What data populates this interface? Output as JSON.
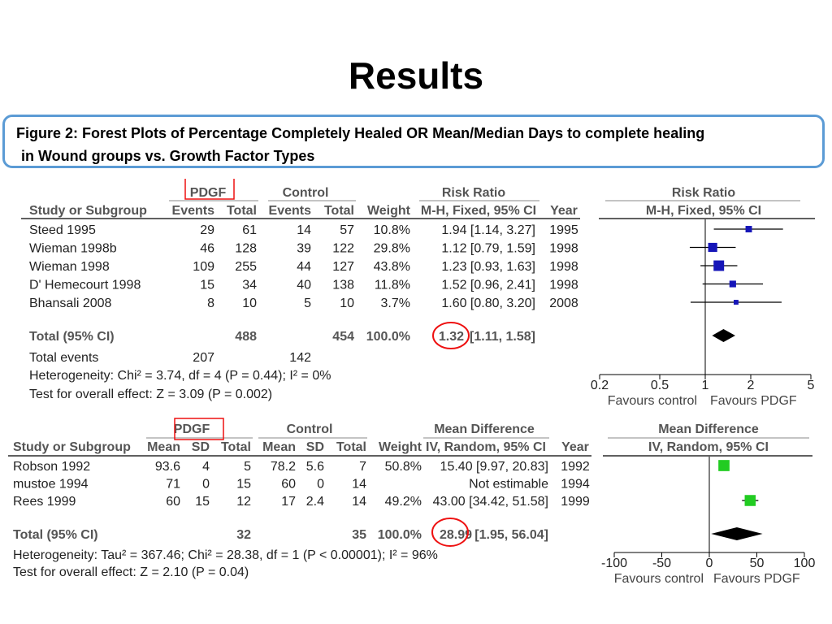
{
  "slide_title": "Results",
  "caption": {
    "line1": "Figure 2: Forest Plots of Percentage Completely Healed OR Mean/Median Days to complete healing",
    "line2": "in Wound groups vs. Growth Factor Types"
  },
  "colors": {
    "plot1_marker": "#1515b8",
    "plot2_marker": "#22cc22",
    "diamond": "#000000",
    "highlight": "#ee1111",
    "header_text": "#555555"
  },
  "chart_data": [
    {
      "type": "table",
      "columns": {
        "study": "Study or Subgroup",
        "group1": "PDGF",
        "group2": "Control",
        "events": "Events",
        "total": "Total",
        "weight": "Weight",
        "effect_title": "Risk Ratio",
        "effect_method": "M-H, Fixed, 95% CI",
        "year": "Year"
      },
      "plot_header": {
        "title": "Risk Ratio",
        "method": "M-H, Fixed, 95% CI"
      },
      "scale": "log",
      "axis": {
        "ticks": [
          0.2,
          0.5,
          1,
          2,
          5
        ],
        "tick_labels": [
          "0.2",
          "0.5",
          "1",
          "2",
          "5"
        ],
        "xlim": [
          0.2,
          5
        ]
      },
      "favours": {
        "left": "Favours control",
        "right": "Favours PDGF"
      },
      "rows": [
        {
          "study": "Steed 1995",
          "ev1": "29",
          "tot1": "61",
          "ev2": "14",
          "tot2": "57",
          "weight": "10.8%",
          "ci_text": "1.94 [1.14, 3.27]",
          "year": "1995",
          "est": 1.94,
          "lo": 1.14,
          "hi": 3.27,
          "w": 10.8
        },
        {
          "study": "Wieman 1998b",
          "ev1": "46",
          "tot1": "128",
          "ev2": "39",
          "tot2": "122",
          "weight": "29.8%",
          "ci_text": "1.12 [0.79, 1.59]",
          "year": "1998",
          "est": 1.12,
          "lo": 0.79,
          "hi": 1.59,
          "w": 29.8
        },
        {
          "study": "Wieman 1998",
          "ev1": "109",
          "tot1": "255",
          "ev2": "44",
          "tot2": "127",
          "weight": "43.8%",
          "ci_text": "1.23 [0.93, 1.63]",
          "year": "1998",
          "est": 1.23,
          "lo": 0.93,
          "hi": 1.63,
          "w": 43.8
        },
        {
          "study": "D' Hemecourt 1998",
          "ev1": "15",
          "tot1": "34",
          "ev2": "40",
          "tot2": "138",
          "weight": "11.8%",
          "ci_text": "1.52 [0.96, 2.41]",
          "year": "1998",
          "est": 1.52,
          "lo": 0.96,
          "hi": 2.41,
          "w": 11.8
        },
        {
          "study": "Bhansali 2008",
          "ev1": "8",
          "tot1": "10",
          "ev2": "5",
          "tot2": "10",
          "weight": "3.7%",
          "ci_text": "1.60 [0.80, 3.20]",
          "year": "2008",
          "est": 1.6,
          "lo": 0.8,
          "hi": 3.2,
          "w": 3.7
        }
      ],
      "total": {
        "label": "Total (95% CI)",
        "tot1": "488",
        "tot2": "454",
        "weight": "100.0%",
        "est_text": "1.32",
        "ci_text": "[1.11, 1.58]",
        "est": 1.32,
        "lo": 1.11,
        "hi": 1.58
      },
      "total_events": {
        "label": "Total events",
        "ev1": "207",
        "ev2": "142"
      },
      "heterogeneity": "Heterogeneity: Chi² = 3.74, df = 4 (P = 0.44); I² = 0%",
      "overall_effect": "Test for overall effect: Z = 3.09 (P = 0.002)"
    },
    {
      "type": "table",
      "columns": {
        "study": "Study or Subgroup",
        "group1": "PDGF",
        "group2": "Control",
        "mean": "Mean",
        "sd": "SD",
        "total": "Total",
        "weight": "Weight",
        "effect_title": "Mean Difference",
        "effect_method": "IV, Random, 95% CI",
        "year": "Year"
      },
      "plot_header": {
        "title": "Mean Difference",
        "method": "IV, Random, 95% CI"
      },
      "scale": "linear",
      "axis": {
        "ticks": [
          -100,
          -50,
          0,
          50,
          100
        ],
        "tick_labels": [
          "-100",
          "-50",
          "0",
          "50",
          "100"
        ],
        "xlim": [
          -100,
          100
        ]
      },
      "favours": {
        "left": "Favours control",
        "right": "Favours PDGF"
      },
      "rows": [
        {
          "study": "Robson 1992",
          "m1": "93.6",
          "sd1": "4",
          "tot1": "5",
          "m2": "78.2",
          "sd2": "5.6",
          "tot2": "7",
          "weight": "50.8%",
          "ci_text": "15.40 [9.97, 20.83]",
          "year": "1992",
          "est": 15.4,
          "lo": 9.97,
          "hi": 20.83,
          "w": 50.8
        },
        {
          "study": "mustoe 1994",
          "m1": "71",
          "sd1": "0",
          "tot1": "15",
          "m2": "60",
          "sd2": "0",
          "tot2": "14",
          "weight": "",
          "ci_text": "Not estimable",
          "year": "1994",
          "est": null,
          "lo": null,
          "hi": null,
          "w": 0
        },
        {
          "study": "Rees 1999",
          "m1": "60",
          "sd1": "15",
          "tot1": "12",
          "m2": "17",
          "sd2": "2.4",
          "tot2": "14",
          "weight": "49.2%",
          "ci_text": "43.00 [34.42, 51.58]",
          "year": "1999",
          "est": 43.0,
          "lo": 34.42,
          "hi": 51.58,
          "w": 49.2
        }
      ],
      "total": {
        "label": "Total (95% CI)",
        "tot1": "32",
        "tot2": "35",
        "weight": "100.0%",
        "est_text": "28.99",
        "ci_text": "[1.95, 56.04]",
        "est": 28.99,
        "lo": 1.95,
        "hi": 56.04
      },
      "heterogeneity": "Heterogeneity: Tau² = 367.46; Chi² = 28.38, df = 1 (P < 0.00001); I² = 96%",
      "overall_effect": "Test for overall effect: Z = 2.10 (P = 0.04)"
    }
  ]
}
